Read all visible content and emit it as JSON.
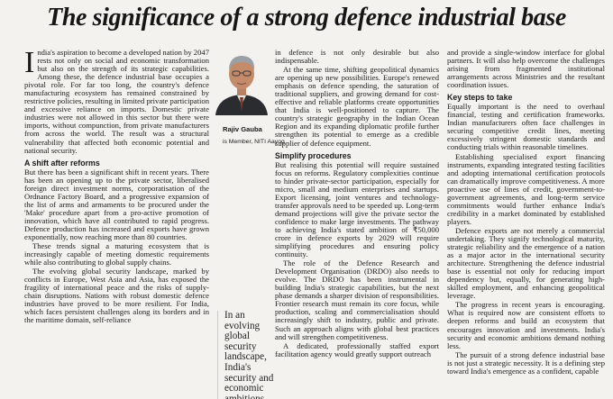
{
  "headline": "The significance of a strong defence industrial base",
  "author": {
    "name": "Rajiv Gauba",
    "role": "is Member, NITI Aayog"
  },
  "pullquote": "In an evolving global security landscape, India's security and economic ambitions demand nothing less",
  "col1": {
    "dropcap": "I",
    "intro": "ndia's aspiration to become a developed nation by 2047 rests not only on social and economic transformation but also on the strength of its strategic capabilities. Among these, the defence industrial base occupies a pivotal role. For far too long, the country's defence manufacturing ecosystem has remained constrained by restrictive policies, resulting in limited private participation and excessive reliance on imports. Domestic private industries were not allowed in this sector but there were imports, without compunction, from private manufacturers from across the world. The result was a structural vulnerability that affected both economic potential and national security.",
    "heading1": "A shift after reforms",
    "p2": "But there has been a significant shift in recent years. There has been an opening up to the private sector, liberalised foreign direct investment norms, corporatisation of the Ordnance Factory Board, and a progressive expansion of the list of arms and armaments to be procured under the 'Make' procedure apart from a pro-active promotion of innovation, which have all contributed to rapid progress. Defence production has increased and exports have grown exponentially, now reaching more than 80 countries.",
    "p3": "These trends signal a maturing ecosystem that is increasingly capable of meeting domestic requirements while also contributing to global supply chains.",
    "p4": "The evolving global security landscape, marked by conflicts in Europe, West Asia and Asia, has exposed the fragility of international peace and the risks of supply-chain disruptions. Nations with robust domestic defence industries have proved to be more resilient. For India, which faces persistent challenges along its borders and in the maritime domain, self-reliance"
  },
  "col3": {
    "p1": "in defence is not only desirable but also indispensable.",
    "p2": "At the same time, shifting geopolitical dynamics are opening up new possibilities. Europe's renewed emphasis on defence spending, the saturation of traditional suppliers, and growing demand for cost-effective and reliable platforms create opportunities that India is well-positioned to capture. The country's strategic geography in the Indian Ocean Region and its expanding diplomatic profile further strengthen its potential to emerge as a credible supplier of defence equipment.",
    "heading": "Simplify procedures",
    "p3": "But realising this potential will require sustained focus on reforms. Regulatory complexities continue to hinder private-sector participation, especially for micro, small and medium enterprises and startups. Export licensing, joint ventures and technology-transfer approvals need to be speeded up. Long-term demand projections will give the private sector the confidence to make large investments. The pathway to achieving India's stated ambition of ₹50,000 crore in defence exports by 2029 will require simplifying procedures and ensuring policy continuity.",
    "p4": "The role of the Defence Research and Development Organisation (DRDO) also needs to evolve. The DRDO has been instrumental in building India's strategic capabilities, but the next phase demands a sharper division of responsibilities. Frontier research must remain its core focus, while production, scaling and commercialisation should increasingly shift to industry, public and private. Such an approach aligns with global best practices and will strengthen competitiveness.",
    "p5": "A dedicated, professionally staffed export facilitation agency would greatly support outreach"
  },
  "col4": {
    "p1": "and provide a single-window interface for global partners. It will also help overcome the challenges arising from fragmented institutional arrangements across Ministries and the resultant coordination issues.",
    "heading": "Key steps to take",
    "p2": "Equally important is the need to overhaul financial, testing and certification frameworks. Indian manufacturers often face challenges in securing competitive credit lines, meeting excessively stringent domestic standards and conducting trials within reasonable timelines.",
    "p3": "Establishing specialised export financing instruments, expanding integrated testing facilities and adopting international certification protocols can dramatically improve competitiveness. A more proactive use of lines of credit, government-to-government agreements, and long-term service commitments would further enhance India's credibility in a market dominated by established players.",
    "p4": "Defence exports are not merely a commercial undertaking. They signify technological maturity, strategic reliability and the emergence of a nation as a major actor in the international security architecture. Strengthening the defence industrial base is essential not only for reducing import dependency but, equally, for generating high-skilled employment, and enhancing geopolitical leverage.",
    "p5": "The progress in recent years is encouraging. What is required now are consistent efforts to deepen reforms and build an ecosystem that encourages innovation and investments. India's security and economic ambitions demand nothing less.",
    "p6": "The pursuit of a strong defence industrial base is not just a strategic necessity. It is a defining step toward India's emergence as a confident, capable"
  }
}
